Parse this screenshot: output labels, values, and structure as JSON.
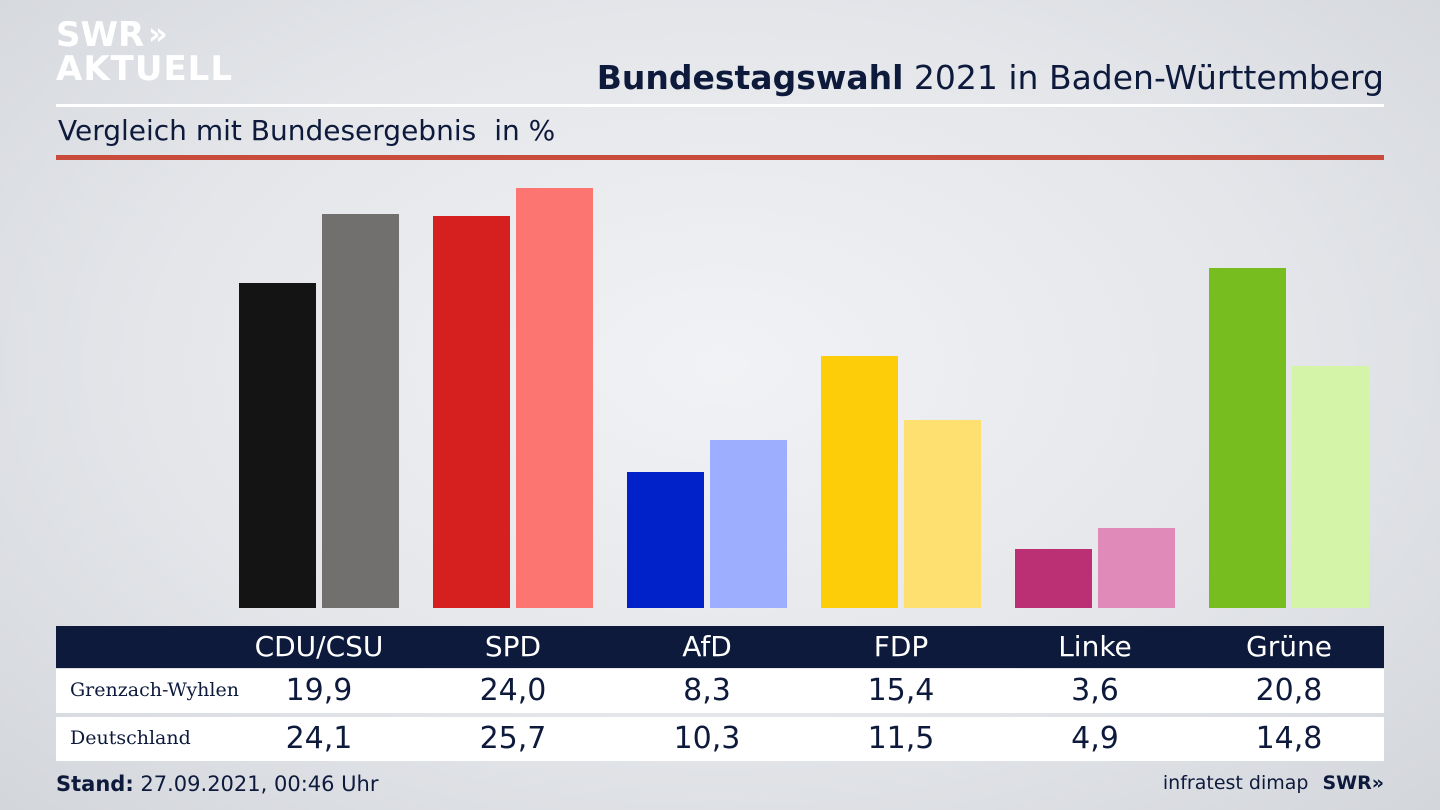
{
  "logo": {
    "line1": "SWR",
    "arrows": "»",
    "line2": "AKTUELL"
  },
  "header": {
    "title_bold": "Bundestagswahl",
    "title_rest": " 2021 in Baden-Württemberg"
  },
  "subtitle": {
    "text": "Vergleich mit Bundesergebnis",
    "unit": "in %"
  },
  "footer": {
    "stand_label": "Stand:",
    "stand_value": " 27.09.2021, 00:46 Uhr",
    "source": "infratest dimap",
    "brand": "SWR»"
  },
  "colors": {
    "accent_rule": "#c94b3c",
    "table_header": "#0d1a3c"
  },
  "chart_data": {
    "type": "bar",
    "categories": [
      "CDU/CSU",
      "SPD",
      "AfD",
      "FDP",
      "Linke",
      "Grüne"
    ],
    "series": [
      {
        "name": "Grenzach-Wyhlen",
        "values": [
          19.9,
          24.0,
          8.3,
          15.4,
          3.6,
          20.8
        ],
        "colors": [
          "#141414",
          "#d61f1f",
          "#0022c8",
          "#fdcd09",
          "#bb2f74",
          "#78bd1f"
        ]
      },
      {
        "name": "Deutschland",
        "values": [
          24.1,
          25.7,
          10.3,
          11.5,
          4.9,
          14.8
        ],
        "colors": [
          "#72706e",
          "#fd7570",
          "#9daefe",
          "#fde070",
          "#e08ab9",
          "#d4f5a8"
        ]
      }
    ],
    "display_values": {
      "Grenzach-Wyhlen": [
        "19,9",
        "24,0",
        "8,3",
        "15,4",
        "3,6",
        "20,8"
      ],
      "Deutschland": [
        "24,1",
        "25,7",
        "10,3",
        "11,5",
        "4,9",
        "14,8"
      ]
    },
    "title": "Bundestagswahl 2021 in Baden-Württemberg",
    "subtitle": "Vergleich mit Bundesergebnis",
    "unit": "in %",
    "ylim": [
      0,
      25.7
    ],
    "grid": false,
    "legend": "none"
  }
}
